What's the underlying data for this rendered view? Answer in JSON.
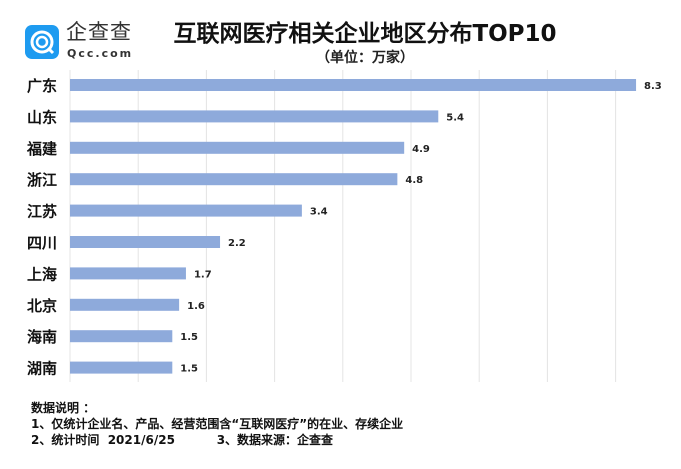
{
  "logo": {
    "name": "企查查",
    "sub": "Qcc.com"
  },
  "notes": {
    "heading": "数据说明 ：",
    "line1": "1、仅统计企业名、产品、经营范围含“互联网医疗”的在业、存续企业",
    "line2": "2、统计时间  2021/6/25          3、数据来源：企查查"
  },
  "chart_data": {
    "type": "bar",
    "orientation": "horizontal",
    "title": "互联网医疗相关企业地区分布TOP10",
    "subtitle": "（单位：万家）",
    "categories": [
      "广东",
      "山东",
      "福建",
      "浙江",
      "江苏",
      "四川",
      "上海",
      "北京",
      "海南",
      "湖南"
    ],
    "values": [
      8.3,
      5.4,
      4.9,
      4.8,
      3.4,
      2.2,
      1.7,
      1.6,
      1.5,
      1.5
    ],
    "xlim": [
      0,
      9
    ],
    "grid": true,
    "bar_color": "#8eaadb",
    "accent": "#1e9bf0"
  }
}
